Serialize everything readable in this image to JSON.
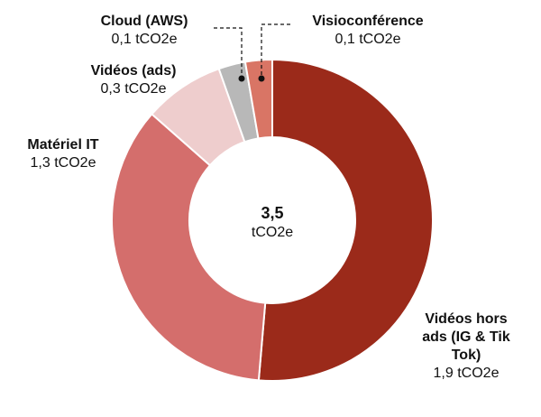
{
  "chart_data": {
    "type": "pie",
    "donut": true,
    "categories": [
      "Vidéos hors ads (IG & Tik Tok)",
      "Matériel IT",
      "Vidéos (ads)",
      "Cloud (AWS)",
      "Visioconférence"
    ],
    "values": [
      1.9,
      1.3,
      0.3,
      0.1,
      0.1
    ],
    "value_labels": [
      "1,9 tCO2e",
      "1,3 tCO2e",
      "0,3 tCO2e",
      "0,1 tCO2e",
      "0,1 tCO2e"
    ],
    "label_lines": [
      [
        "Vidéos hors",
        "ads (IG & Tik",
        "Tok)"
      ],
      [
        "Matériel IT"
      ],
      [
        "Vidéos (ads)"
      ],
      [
        "Cloud (AWS)"
      ],
      [
        "Visioconférence"
      ]
    ],
    "colors": [
      "#9b2a1a",
      "#d46e6c",
      "#eecdcd",
      "#b8b8b8",
      "#d97565"
    ],
    "center": {
      "total": "3,5",
      "unit": "tCO2e"
    },
    "legend": "none"
  }
}
